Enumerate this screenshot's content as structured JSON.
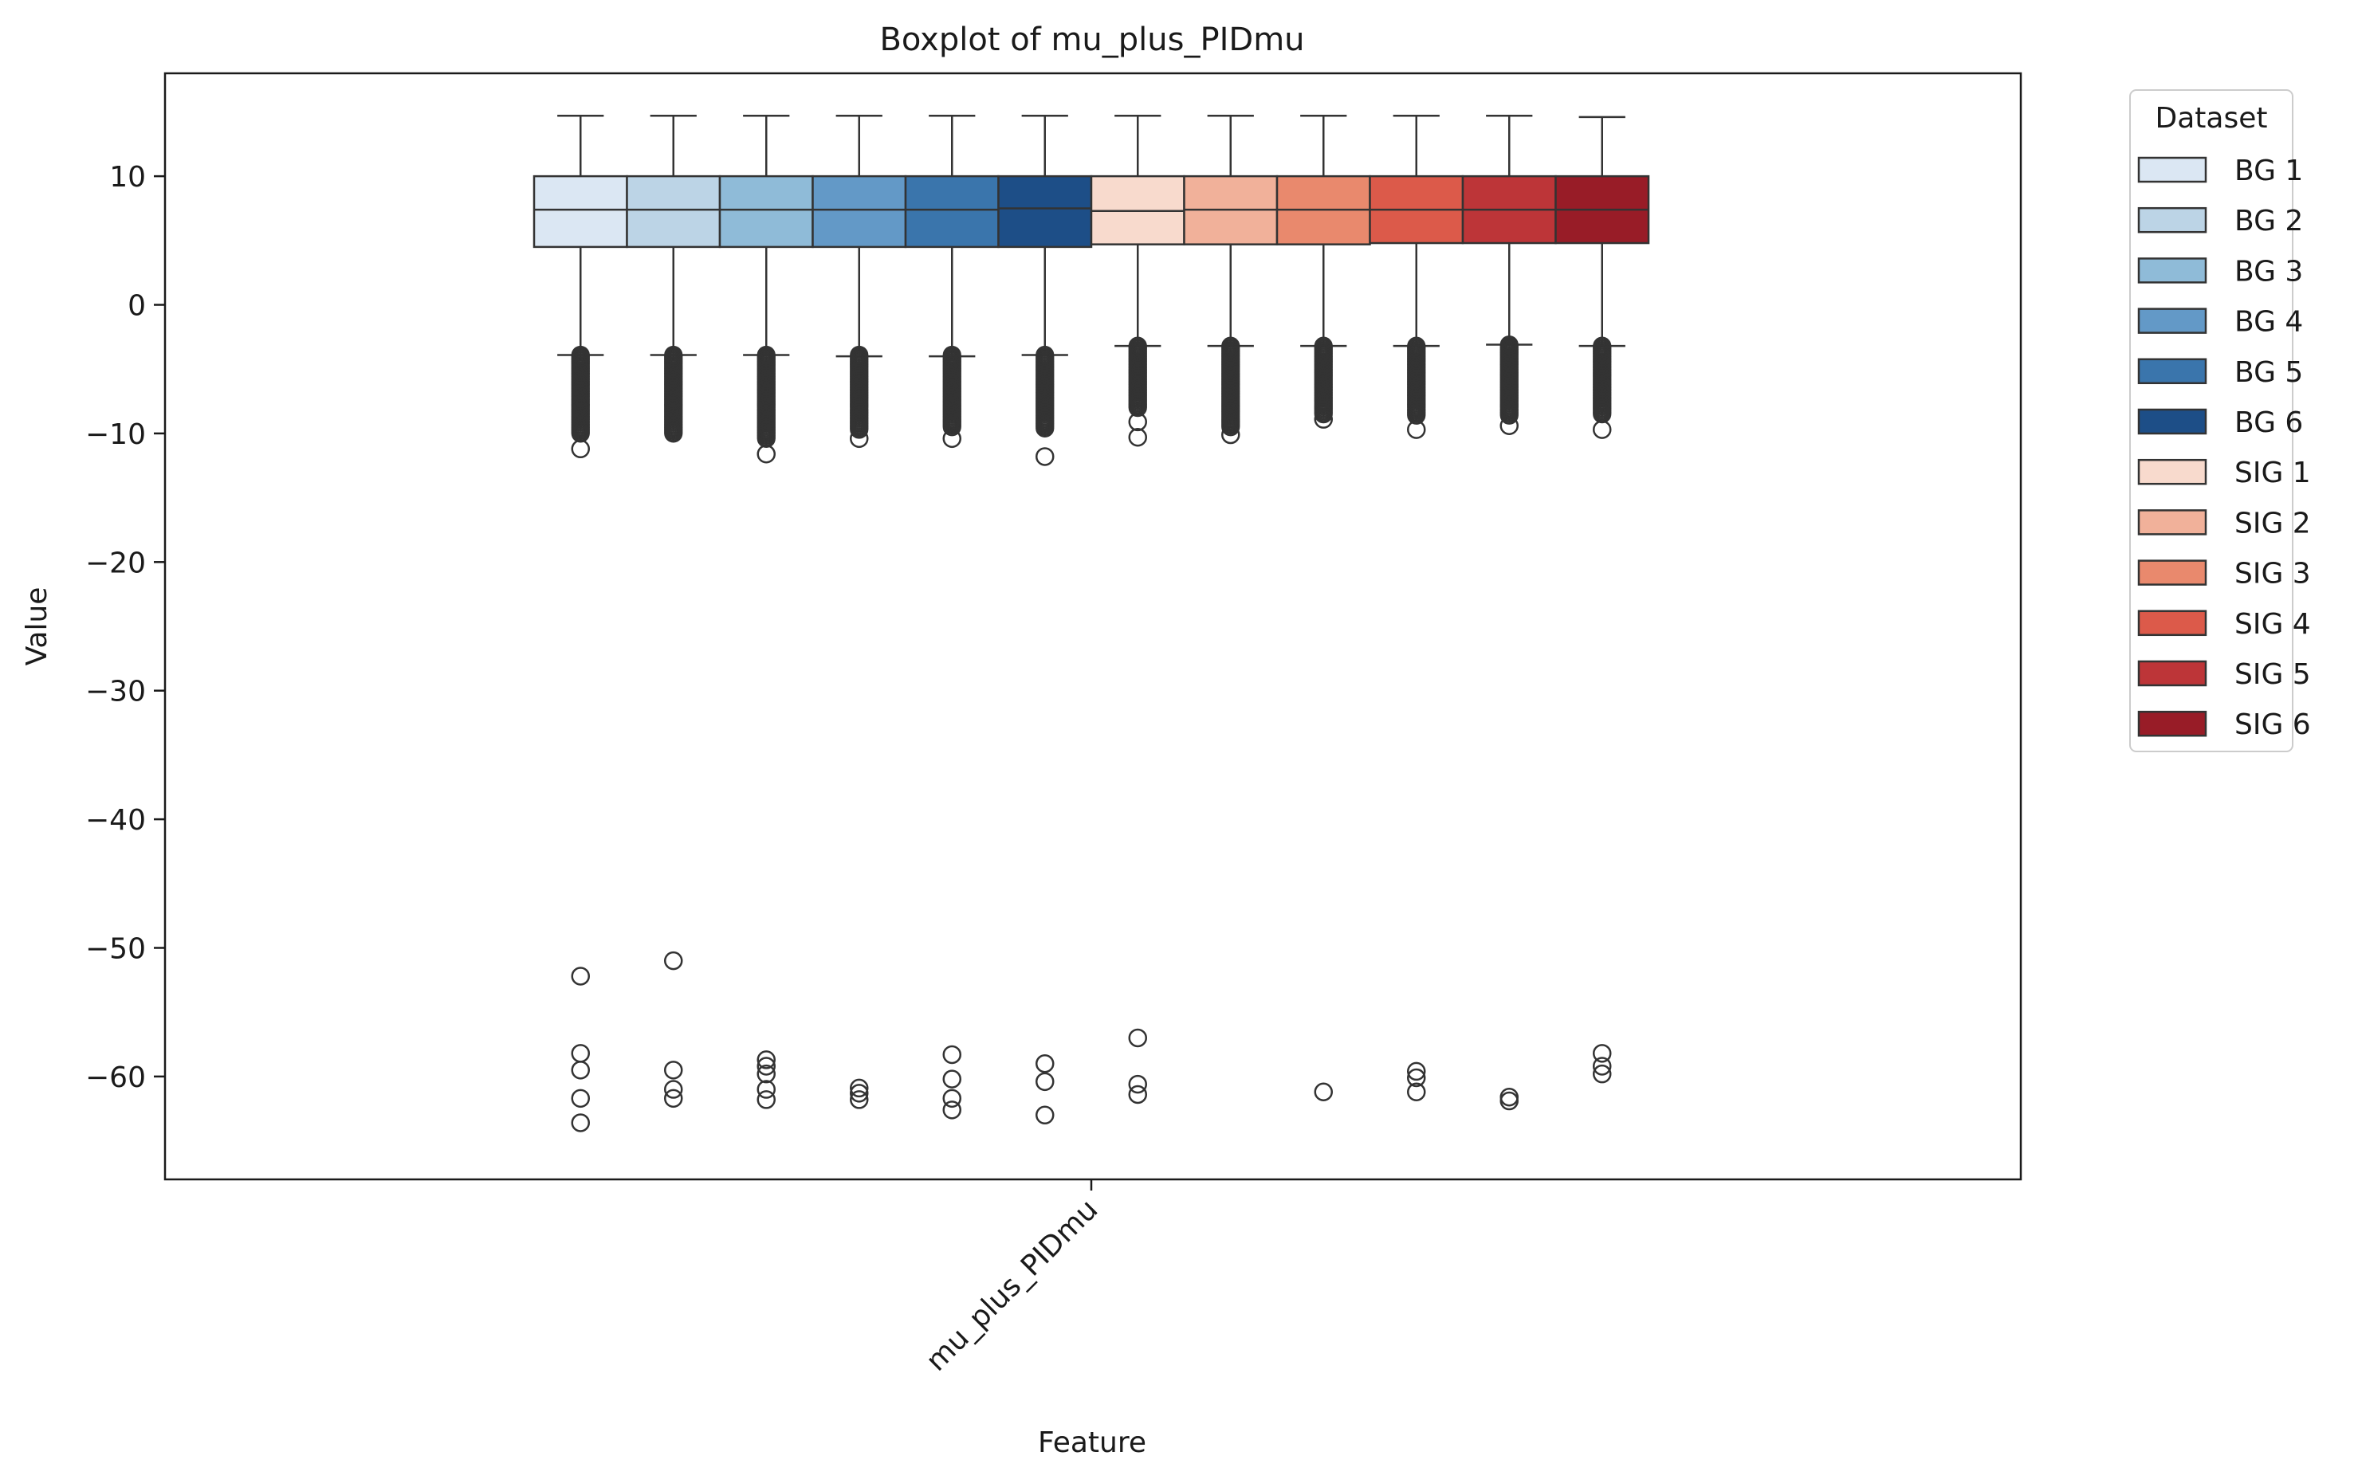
{
  "chart_data": {
    "type": "boxplot",
    "title": "Boxplot of mu_plus_PIDmu",
    "xlabel": "Feature",
    "ylabel": "Value",
    "categories": [
      "mu_plus_PIDmu"
    ],
    "ylim": [
      -68,
      18
    ],
    "yticks": [
      10,
      0,
      -10,
      -20,
      -30,
      -40,
      -50,
      -60
    ],
    "ytick_labels": [
      "10",
      "0",
      "−10",
      "−20",
      "−30",
      "−40",
      "−50",
      "−60"
    ],
    "grid": false,
    "legend": {
      "title": "Dataset",
      "position": "outside-right"
    },
    "series": [
      {
        "name": "BG 1",
        "color": "#dbe7f3",
        "whisker_high": 14.7,
        "q3": 10.0,
        "median": 7.4,
        "q1": 4.5,
        "whisker_low": -3.9,
        "outlier_band": [
          -10.0,
          -3.9
        ],
        "outliers": [
          -11.2,
          -52.2,
          -58.2,
          -59.5,
          -61.7,
          -63.6
        ]
      },
      {
        "name": "BG 2",
        "color": "#bcd4e6",
        "whisker_high": 14.7,
        "q3": 10.0,
        "median": 7.4,
        "q1": 4.5,
        "whisker_low": -3.9,
        "outlier_band": [
          -10.0,
          -3.9
        ],
        "outliers": [
          -51.0,
          -59.5,
          -61.0,
          -61.7
        ]
      },
      {
        "name": "BG 3",
        "color": "#8fbbd8",
        "whisker_high": 14.7,
        "q3": 10.0,
        "median": 7.4,
        "q1": 4.5,
        "whisker_low": -3.9,
        "outlier_band": [
          -10.4,
          -3.9
        ],
        "outliers": [
          -11.6,
          -58.7,
          -59.2,
          -59.8,
          -61.0,
          -61.8
        ]
      },
      {
        "name": "BG 4",
        "color": "#6399c7",
        "whisker_high": 14.7,
        "q3": 10.0,
        "median": 7.4,
        "q1": 4.5,
        "whisker_low": -4.0,
        "outlier_band": [
          -9.7,
          -3.9
        ],
        "outliers": [
          -10.4,
          -60.9,
          -61.3,
          -61.8
        ]
      },
      {
        "name": "BG 5",
        "color": "#3a75ac",
        "whisker_high": 14.7,
        "q3": 10.0,
        "median": 7.4,
        "q1": 4.5,
        "whisker_low": -4.0,
        "outlier_band": [
          -9.5,
          -3.9
        ],
        "outliers": [
          -10.4,
          -58.3,
          -60.2,
          -61.7,
          -62.6
        ]
      },
      {
        "name": "BG 6",
        "color": "#1d4e87",
        "whisker_high": 14.7,
        "q3": 10.0,
        "median": 7.5,
        "q1": 4.5,
        "whisker_low": -3.9,
        "outlier_band": [
          -9.6,
          -3.9
        ],
        "outliers": [
          -11.8,
          -59.0,
          -60.4,
          -63.0
        ]
      },
      {
        "name": "SIG 1",
        "color": "#f8dacd",
        "whisker_high": 14.7,
        "q3": 10.0,
        "median": 7.3,
        "q1": 4.7,
        "whisker_low": -3.2,
        "outlier_band": [
          -8.0,
          -3.2
        ],
        "outliers": [
          -9.1,
          -10.3,
          -57.0,
          -60.6,
          -61.4
        ]
      },
      {
        "name": "SIG 2",
        "color": "#f1b19a",
        "whisker_high": 14.7,
        "q3": 10.0,
        "median": 7.4,
        "q1": 4.7,
        "whisker_low": -3.2,
        "outlier_band": [
          -9.5,
          -3.2
        ],
        "outliers": [
          -10.1
        ]
      },
      {
        "name": "SIG 3",
        "color": "#e9896d",
        "whisker_high": 14.7,
        "q3": 10.0,
        "median": 7.4,
        "q1": 4.7,
        "whisker_low": -3.2,
        "outlier_band": [
          -8.5,
          -3.2
        ],
        "outliers": [
          -8.9,
          -61.2
        ]
      },
      {
        "name": "SIG 4",
        "color": "#dc5a4a",
        "whisker_high": 14.7,
        "q3": 10.0,
        "median": 7.4,
        "q1": 4.8,
        "whisker_low": -3.2,
        "outlier_band": [
          -8.6,
          -3.2
        ],
        "outliers": [
          -9.7,
          -59.6,
          -60.1,
          -61.2
        ]
      },
      {
        "name": "SIG 5",
        "color": "#bd3538",
        "whisker_high": 14.7,
        "q3": 10.0,
        "median": 7.4,
        "q1": 4.8,
        "whisker_low": -3.1,
        "outlier_band": [
          -8.6,
          -3.1
        ],
        "outliers": [
          -9.4,
          -61.6,
          -61.9
        ]
      },
      {
        "name": "SIG 6",
        "color": "#981c27",
        "whisker_high": 14.6,
        "q3": 10.0,
        "median": 7.4,
        "q1": 4.8,
        "whisker_low": -3.2,
        "outlier_band": [
          -8.5,
          -3.2
        ],
        "outliers": [
          -9.7,
          -58.2,
          -59.2,
          -59.8
        ]
      }
    ]
  }
}
